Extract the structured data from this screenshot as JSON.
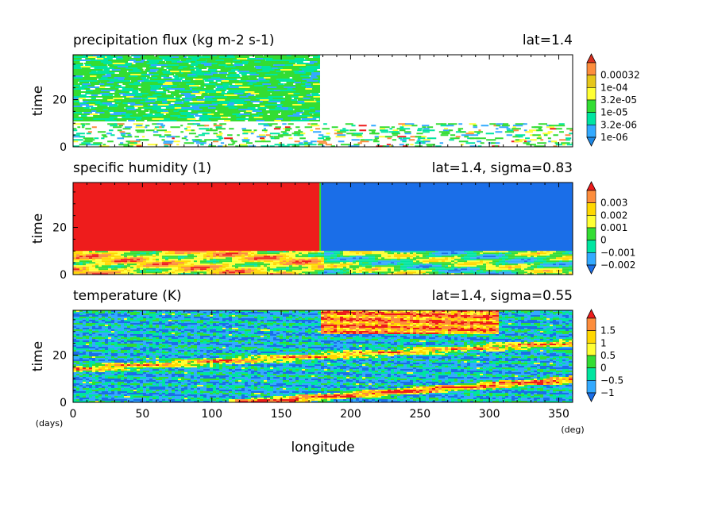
{
  "chart_data": [
    {
      "type": "heatmap",
      "title": "precipitation flux (kg m-2 s-1)",
      "subtitle": "lat=1.4",
      "xlabel": "longitude",
      "ylabel": "time",
      "xlim": [
        0,
        360
      ],
      "ylim": [
        0,
        39
      ],
      "yticks": [
        0,
        20
      ],
      "colorbar": {
        "labels": [
          "0.00032",
          "1e-04",
          "3.2e-05",
          "1e-05",
          "3.2e-06",
          "1e-06"
        ],
        "colors": [
          "#d7301f",
          "#fd8d3c",
          "#e6c619",
          "#ffff33",
          "#33dd33",
          "#00e5a0",
          "#33aaff",
          "#1e88e5"
        ]
      },
      "regions": [
        {
          "lon": [
            0,
            178
          ],
          "time": [
            11,
            39
          ],
          "level": "1e-05 to 3.2e-05"
        },
        {
          "lon": [
            0,
            360
          ],
          "time": [
            0,
            10
          ],
          "level": "scattered 1e-06 to 0.00032"
        },
        {
          "lon": [
            178,
            360
          ],
          "time": [
            11,
            39
          ],
          "level": "below 1e-06"
        }
      ]
    },
    {
      "type": "heatmap",
      "title": "specific humidity (1)",
      "subtitle": "lat=1.4, sigma=0.83",
      "xlabel": "longitude",
      "ylabel": "time",
      "xlim": [
        0,
        360
      ],
      "ylim": [
        0,
        39
      ],
      "yticks": [
        0,
        20
      ],
      "colorbar": {
        "labels": [
          "0.003",
          "0.002",
          "0.001",
          "0",
          "−0.001",
          "−0.002"
        ],
        "colors": [
          "#ee1c1c",
          "#fd8d3c",
          "#ffd700",
          "#ffff33",
          "#33dd33",
          "#00e5a0",
          "#33aaff",
          "#1a6ee8"
        ]
      },
      "regions": [
        {
          "lon": [
            0,
            178
          ],
          "time": [
            10,
            39
          ],
          "value": 0.0035
        },
        {
          "lon": [
            178,
            360
          ],
          "time": [
            10,
            39
          ],
          "value": -0.0025
        },
        {
          "lon": [
            0,
            360
          ],
          "time": [
            0,
            10
          ],
          "value": "mixed -0.002 to 0.003"
        }
      ]
    },
    {
      "type": "heatmap",
      "title": "temperature (K)",
      "subtitle": "lat=1.4, sigma=0.55",
      "xlabel": "longitude",
      "ylabel": "time",
      "xlim": [
        0,
        360
      ],
      "ylim": [
        0,
        39
      ],
      "yticks": [
        0,
        20
      ],
      "xticks": [
        0,
        50,
        100,
        150,
        200,
        250,
        300,
        350
      ],
      "xunit": "(deg)",
      "yunit": "(days)",
      "colorbar": {
        "labels": [
          "1.5",
          "1",
          "0.5",
          "0",
          "−0.5",
          "−1"
        ],
        "colors": [
          "#ee1c1c",
          "#fd8d3c",
          "#ffd700",
          "#ffff33",
          "#33dd33",
          "#00e5a0",
          "#33aaff",
          "#1a6ee8"
        ]
      },
      "features": [
        {
          "kind": "warm band",
          "from": [
            115,
            0
          ],
          "to": [
            360,
            10
          ]
        },
        {
          "kind": "warm band",
          "from": [
            0,
            15
          ],
          "to": [
            360,
            26
          ]
        },
        {
          "kind": "warm region",
          "lon": [
            178,
            300
          ],
          "time": [
            30,
            39
          ]
        }
      ]
    }
  ]
}
